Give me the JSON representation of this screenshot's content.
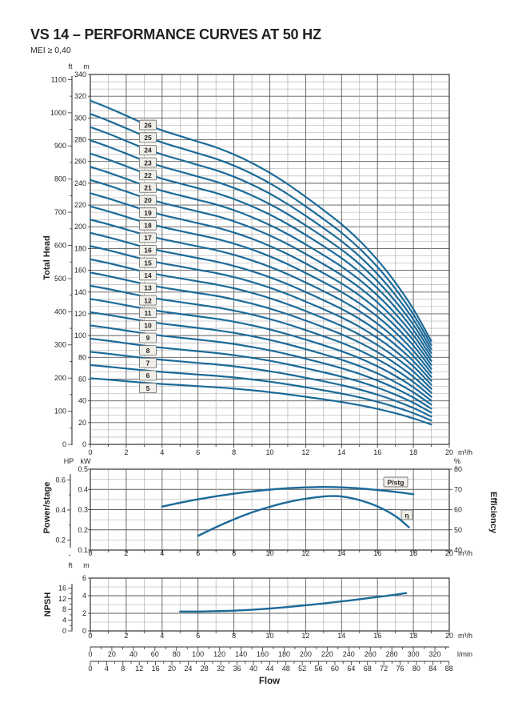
{
  "page": {
    "title": "VS 14 – PERFORMANCE CURVES AT 50 HZ",
    "subtitle": "MEI ≥ 0,40"
  },
  "colors": {
    "curve": "#1b6a99",
    "grid_minor": "#a6a6a6",
    "grid_major": "#5a5a5a",
    "border": "#333333",
    "text": "#231f20",
    "label_box_bg": "#f1efe9",
    "label_box_border": "#767676"
  },
  "chart_data": [
    {
      "id": "total-head",
      "type": "line",
      "ylabel": "Total Head",
      "x_axis": {
        "unit": "m³/h",
        "min": 0,
        "max": 20,
        "ticks": [
          0,
          2,
          4,
          6,
          8,
          10,
          12,
          14,
          16,
          18,
          20
        ]
      },
      "y_axis_m": {
        "unit": "m",
        "min": 0,
        "max": 340,
        "ticks": [
          0,
          20,
          40,
          60,
          80,
          100,
          120,
          140,
          160,
          180,
          200,
          220,
          240,
          260,
          280,
          300,
          320,
          340
        ]
      },
      "y_axis_ft": {
        "unit": "ft",
        "min": 0,
        "max": 1100,
        "ticks": [
          0,
          100,
          200,
          300,
          400,
          500,
          600,
          700,
          800,
          900,
          1000,
          1100
        ]
      },
      "stages": [
        5,
        6,
        7,
        8,
        9,
        10,
        11,
        12,
        13,
        14,
        15,
        16,
        17,
        18,
        19,
        20,
        21,
        22,
        23,
        24,
        25,
        26
      ],
      "q_m3h": [
        0,
        1,
        2,
        3,
        4,
        5,
        6,
        7,
        8,
        9,
        10,
        11,
        12,
        13,
        14,
        15,
        16,
        17,
        18,
        19
      ],
      "head_per_stage_m": [
        12.15,
        11.9,
        11.62,
        11.34,
        11.1,
        10.9,
        10.7,
        10.5,
        10.25,
        9.95,
        9.6,
        9.2,
        8.75,
        8.28,
        7.78,
        7.2,
        6.52,
        5.72,
        4.78,
        3.65
      ],
      "note": "curve for N stages = N × head_per_stage_m",
      "stage_label_column_q": 3.2
    },
    {
      "id": "power-efficiency",
      "type": "line",
      "ylabel_left": "Power/stage",
      "ylabel_right": "Efficiency",
      "x_axis": {
        "unit": "m³/h",
        "min": 0,
        "max": 20,
        "ticks": [
          0,
          2,
          4,
          6,
          8,
          10,
          12,
          14,
          16,
          18,
          20
        ]
      },
      "y_axis_kw": {
        "unit": "kW",
        "min": 0.1,
        "max": 0.5,
        "ticks": [
          0.1,
          0.2,
          0.3,
          0.4,
          0.5
        ]
      },
      "y_axis_hp": {
        "unit": "HP",
        "ticks": [
          0.2,
          0.4,
          0.6
        ]
      },
      "y_axis_pct": {
        "unit": "%",
        "min": 40,
        "max": 80,
        "ticks": [
          40,
          50,
          60,
          70,
          80
        ]
      },
      "series": [
        {
          "name": "P/stg",
          "axis": "kw",
          "x": [
            4,
            5,
            6,
            7,
            8,
            9,
            10,
            11,
            12,
            13,
            14,
            15,
            16,
            17,
            18
          ],
          "y": [
            0.315,
            0.334,
            0.351,
            0.366,
            0.379,
            0.39,
            0.399,
            0.406,
            0.41,
            0.412,
            0.41,
            0.405,
            0.397,
            0.388,
            0.376
          ]
        },
        {
          "name": "η",
          "axis": "pct",
          "x": [
            6,
            7,
            8,
            9,
            10,
            11,
            12,
            13,
            13.5,
            14,
            15,
            16,
            17,
            17.75
          ],
          "y": [
            47,
            51.3,
            55.2,
            58.6,
            61.4,
            63.7,
            65.4,
            66.5,
            66.7,
            66.5,
            64.7,
            61.6,
            56.8,
            51.3
          ]
        }
      ]
    },
    {
      "id": "npsh",
      "type": "line",
      "ylabel": "NPSH",
      "x_axis": {
        "unit": "m³/h",
        "min": 0,
        "max": 20,
        "ticks": [
          0,
          2,
          4,
          6,
          8,
          10,
          12,
          14,
          16,
          18,
          20
        ]
      },
      "y_axis_m": {
        "unit": "m",
        "min": 0,
        "max": 6,
        "ticks": [
          0,
          2,
          4,
          6
        ]
      },
      "y_axis_ft": {
        "unit": "ft",
        "min": 0,
        "max": 16,
        "ticks": [
          0,
          4,
          8,
          12,
          16
        ]
      },
      "series": [
        {
          "name": "NPSH",
          "x": [
            5,
            6,
            7,
            8,
            9,
            10,
            11,
            12,
            13,
            14,
            15,
            16,
            17,
            17.6
          ],
          "y": [
            2.2,
            2.2,
            2.25,
            2.3,
            2.4,
            2.55,
            2.72,
            2.92,
            3.12,
            3.35,
            3.6,
            3.85,
            4.12,
            4.3
          ]
        }
      ]
    }
  ],
  "flow_axis": {
    "label": "Flow",
    "lmin": {
      "unit": "l/min",
      "ticks": [
        0,
        20,
        40,
        60,
        80,
        100,
        120,
        140,
        160,
        180,
        200,
        220,
        240,
        260,
        280,
        300,
        320
      ]
    },
    "gpm": {
      "ticks": [
        0,
        4,
        8,
        12,
        16,
        20,
        24,
        28,
        32,
        36,
        40,
        44,
        48,
        52,
        56,
        60,
        64,
        68,
        72,
        76,
        80,
        84,
        88
      ]
    }
  }
}
